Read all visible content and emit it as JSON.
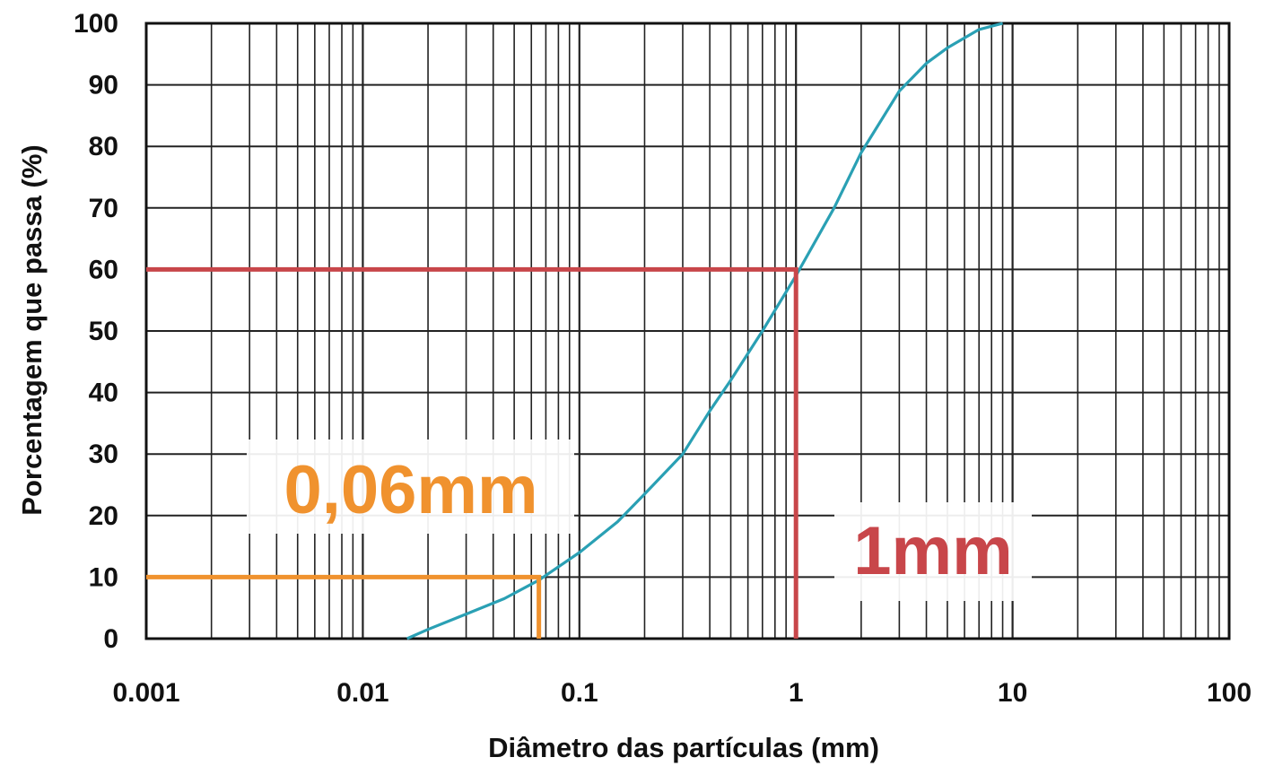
{
  "chart_data": {
    "type": "line",
    "title": "",
    "xlabel": "Diâmetro das partículas (mm)",
    "ylabel": "Porcentagem que passa (%)",
    "x_scale": "log",
    "xlim": [
      0.001,
      100
    ],
    "ylim": [
      0,
      100
    ],
    "grid": true,
    "x_ticks": [
      0.001,
      0.01,
      0.1,
      1,
      10,
      100
    ],
    "x_tick_labels": [
      "0.001",
      "0.01",
      "0.1",
      "1",
      "10",
      "100"
    ],
    "y_ticks": [
      0,
      10,
      20,
      30,
      40,
      50,
      60,
      70,
      80,
      90,
      100
    ],
    "y_tick_labels": [
      "0",
      "10",
      "20",
      "30",
      "40",
      "50",
      "60",
      "70",
      "80",
      "90",
      "100"
    ],
    "series": [
      {
        "color": "#2aa0b4",
        "x": [
          0.016,
          0.02,
          0.03,
          0.045,
          0.065,
          0.1,
          0.15,
          0.2,
          0.3,
          0.4,
          0.5,
          0.7,
          1,
          1.5,
          2,
          3,
          4,
          5,
          7,
          9
        ],
        "y": [
          0,
          1.5,
          4,
          6.5,
          9.5,
          14,
          19,
          23.5,
          30,
          37,
          42,
          50,
          59,
          70,
          79,
          89,
          93.5,
          96,
          99,
          100
        ]
      }
    ],
    "annotations": [
      {
        "text": "0,06mm",
        "color": "#f0922e",
        "x": 0.065,
        "y": 10
      },
      {
        "text": "1mm",
        "color": "#c8464a",
        "x": 1,
        "y": 60
      }
    ]
  }
}
